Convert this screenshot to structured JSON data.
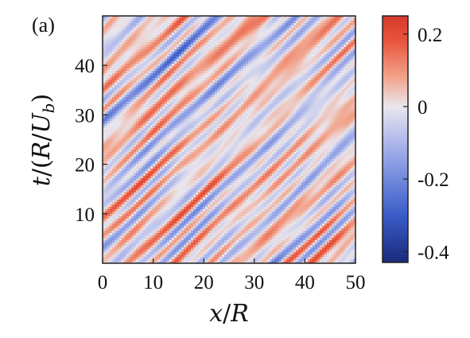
{
  "panel_label": "(a)",
  "chart_data": {
    "type": "heatmap",
    "title": "",
    "xlabel": "x/R",
    "ylabel": "t/(R/U_b)",
    "xlim": [
      0,
      50
    ],
    "ylim": [
      0,
      50
    ],
    "x_ticks": [
      0,
      10,
      20,
      30,
      40,
      50
    ],
    "y_ticks": [
      10,
      20,
      30,
      40
    ],
    "colorbar": {
      "range": [
        -0.43,
        0.25
      ],
      "ticks": [
        {
          "value": 0.2,
          "label": "0.2"
        },
        {
          "value": 0,
          "label": "0"
        },
        {
          "value": -0.2,
          "label": "-0.2"
        },
        {
          "value": -0.4,
          "label": "-0.4"
        }
      ],
      "colors": [
        "#1a2a7a",
        "#3a5cc8",
        "#9aa8e8",
        "#e9e6ee",
        "#f2a48c",
        "#e8553e",
        "#d63a2c"
      ]
    },
    "pattern": {
      "description_free": true,
      "band_direction_dx_dt": 1.0,
      "amplitude": 0.22,
      "min_value": -0.43,
      "max_value": 0.25
    },
    "grid": false
  }
}
